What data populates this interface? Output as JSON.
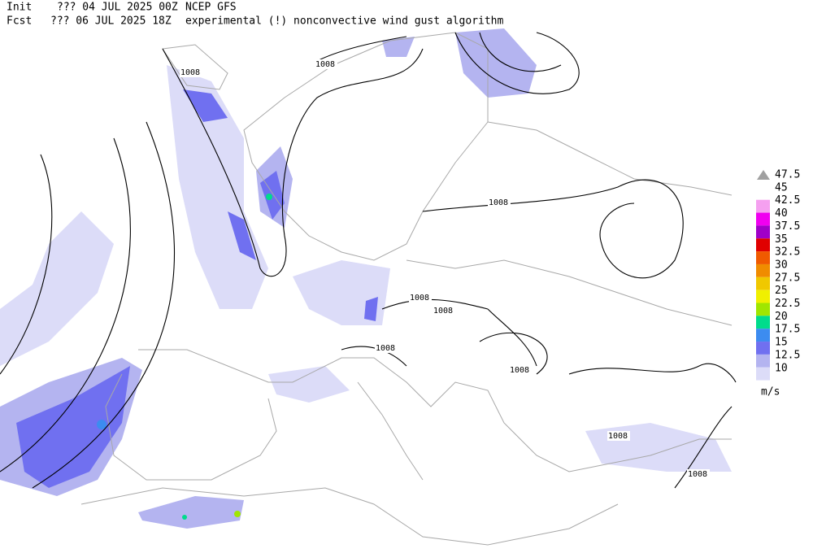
{
  "header": {
    "init_label": "Init",
    "init": "??? 04 JUL 2025 00Z",
    "model": "NCEP GFS",
    "fcst_label": "Fcst",
    "fcst": "??? 06 JUL 2025 18Z",
    "description": "experimental (!) nonconvective wind gust algorithm"
  },
  "legend": {
    "unit": "m/s",
    "items": [
      {
        "value": 47.5,
        "color": "#a0a0a0"
      },
      {
        "value": 45,
        "color": "#ffffff"
      },
      {
        "value": 42.5,
        "color": "#f5a0f0"
      },
      {
        "value": 40,
        "color": "#f000f0"
      },
      {
        "value": 37.5,
        "color": "#a000c8"
      },
      {
        "value": 35,
        "color": "#e00000"
      },
      {
        "value": 32.5,
        "color": "#f05a00"
      },
      {
        "value": 30,
        "color": "#f08c00"
      },
      {
        "value": 27.5,
        "color": "#f0c800"
      },
      {
        "value": 25,
        "color": "#f0f000"
      },
      {
        "value": 22.5,
        "color": "#a0e600"
      },
      {
        "value": 20,
        "color": "#00dc8c"
      },
      {
        "value": 17.5,
        "color": "#3c8cf0"
      },
      {
        "value": 15,
        "color": "#7070f0"
      },
      {
        "value": 12.5,
        "color": "#b4b4f0"
      },
      {
        "value": 10,
        "color": "#dcdcf8"
      }
    ]
  },
  "isobar_labels": [
    "1008",
    "1008",
    "1008",
    "1008",
    "1008",
    "1008",
    "1008",
    "1008",
    "1008"
  ]
}
